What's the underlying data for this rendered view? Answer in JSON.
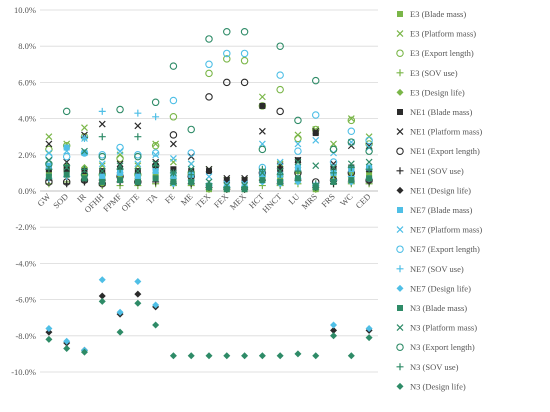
{
  "chart_data": {
    "type": "scatter",
    "title": "",
    "xlabel": "",
    "ylabel": "",
    "ylim": [
      -0.1,
      0.1
    ],
    "yticks": [
      -0.1,
      -0.08,
      -0.06,
      -0.04,
      -0.02,
      0.0,
      0.02,
      0.04,
      0.06,
      0.08,
      0.1
    ],
    "ytick_labels": [
      "-10.0%",
      "-8.0%",
      "-6.0%",
      "-4.0%",
      "-2.0%",
      "0.0%",
      "2.0%",
      "4.0%",
      "6.0%",
      "8.0%",
      "10.0%"
    ],
    "grid": "horizontal",
    "legend_position": "right",
    "categories": [
      "GW",
      "SOD",
      "IR",
      "OFHH",
      "FPMF",
      "OFTE",
      "TA",
      "FE",
      "ME",
      "TEX",
      "FEX",
      "MEX",
      "HCT",
      "HNCT",
      "LU",
      "MRS",
      "FRS",
      "WC",
      "CED"
    ],
    "series": [
      {
        "name": "E3 (Blade mass)",
        "color": "#7ab648",
        "marker": "square",
        "values": [
          0.01,
          0.012,
          0.01,
          0.006,
          0.007,
          0.006,
          0.008,
          0.006,
          0.006,
          0.001,
          0.001,
          0.001,
          0.007,
          0.007,
          0.011,
          0.001,
          0.007,
          0.008,
          0.009
        ]
      },
      {
        "name": "E3 (Platform mass)",
        "color": "#7ab648",
        "marker": "x",
        "values": [
          0.03,
          0.026,
          0.035,
          0.014,
          0.02,
          0.014,
          0.026,
          0.016,
          0.015,
          0.012,
          0.006,
          0.006,
          0.052,
          0.015,
          0.031,
          0.034,
          0.026,
          0.04,
          0.03
        ]
      },
      {
        "name": "E3 (Export length)",
        "color": "#7ab648",
        "marker": "circle",
        "values": [
          0.023,
          0.025,
          0.03,
          0.009,
          0.018,
          0.009,
          0.025,
          0.041,
          0.01,
          0.065,
          0.073,
          0.072,
          0.047,
          0.056,
          0.029,
          0.034,
          0.023,
          0.039,
          0.026
        ]
      },
      {
        "name": "E3 (SOV use)",
        "color": "#7ab648",
        "marker": "plus",
        "values": [
          0.004,
          0.005,
          0.005,
          0.003,
          0.003,
          0.003,
          0.004,
          0.003,
          0.003,
          0.001,
          0.001,
          0.001,
          0.003,
          0.003,
          0.004,
          0.001,
          0.004,
          0.004,
          0.004
        ]
      },
      {
        "name": "E3 (Design life)",
        "color": "#7ab648",
        "marker": "diamond",
        "values": [
          0.012,
          0.014,
          0.013,
          0.007,
          0.009,
          0.007,
          0.01,
          0.008,
          0.008,
          0.002,
          0.002,
          0.002,
          0.01,
          0.008,
          0.013,
          0.002,
          0.009,
          0.01,
          0.011
        ]
      },
      {
        "name": "NE1 (Blade mass)",
        "color": "#2b2b2b",
        "marker": "square",
        "values": [
          0.012,
          0.012,
          0.011,
          0.011,
          0.012,
          0.011,
          0.013,
          0.012,
          0.011,
          0.011,
          0.006,
          0.006,
          0.047,
          0.012,
          0.017,
          0.032,
          0.012,
          0.013,
          0.012
        ]
      },
      {
        "name": "NE1 (Platform mass)",
        "color": "#2b2b2b",
        "marker": "x",
        "values": [
          0.026,
          0.016,
          0.031,
          0.037,
          0.015,
          0.036,
          0.016,
          0.026,
          0.019,
          0.012,
          0.007,
          0.007,
          0.033,
          0.014,
          0.017,
          0.033,
          0.015,
          0.025,
          0.025
        ]
      },
      {
        "name": "NE1 (Export length)",
        "color": "#2b2b2b",
        "marker": "circle",
        "values": [
          0.005,
          0.005,
          0.006,
          0.004,
          0.008,
          0.005,
          0.014,
          0.031,
          0.008,
          0.052,
          0.06,
          0.06,
          0.01,
          0.044,
          0.01,
          0.005,
          0.006,
          0.01,
          0.006
        ]
      },
      {
        "name": "NE1 (SOV use)",
        "color": "#2b2b2b",
        "marker": "plus",
        "values": [
          0.006,
          0.004,
          0.005,
          0.006,
          0.005,
          0.005,
          0.005,
          0.004,
          0.004,
          0.002,
          0.001,
          0.001,
          0.006,
          0.004,
          0.006,
          0.002,
          0.004,
          0.005,
          0.005
        ]
      },
      {
        "name": "NE1 (Design life)",
        "color": "#2b2b2b",
        "marker": "diamond",
        "values": [
          -0.078,
          -0.084,
          -0.088,
          -0.058,
          -0.068,
          -0.057,
          -0.064,
          0.005,
          0.006,
          0.003,
          0.002,
          0.002,
          0.006,
          0.005,
          0.006,
          0.003,
          -0.077,
          0.006,
          -0.077
        ]
      },
      {
        "name": "NE7 (Blade mass)",
        "color": "#4fbfe6",
        "marker": "square",
        "values": [
          0.014,
          0.024,
          0.021,
          0.008,
          0.01,
          0.008,
          0.011,
          0.009,
          0.009,
          0.003,
          0.002,
          0.002,
          0.01,
          0.009,
          0.013,
          0.003,
          0.01,
          0.012,
          0.013
        ]
      },
      {
        "name": "NE7 (Platform mass)",
        "color": "#4fbfe6",
        "marker": "x",
        "values": [
          0.021,
          0.022,
          0.029,
          0.015,
          0.022,
          0.015,
          0.02,
          0.018,
          0.015,
          0.008,
          0.004,
          0.004,
          0.026,
          0.016,
          0.026,
          0.028,
          0.021,
          0.027,
          0.024
        ]
      },
      {
        "name": "NE7 (Export length)",
        "color": "#4fbfe6",
        "marker": "circle",
        "values": [
          0.019,
          0.019,
          0.021,
          0.02,
          0.024,
          0.02,
          0.021,
          0.05,
          0.021,
          0.07,
          0.076,
          0.076,
          0.013,
          0.064,
          0.022,
          0.042,
          0.016,
          0.033,
          0.028
        ]
      },
      {
        "name": "NE7 (SOV use)",
        "color": "#4fbfe6",
        "marker": "plus",
        "values": [
          0.007,
          0.008,
          0.029,
          0.044,
          0.01,
          0.043,
          0.041,
          0.007,
          0.006,
          0.003,
          0.002,
          0.002,
          0.008,
          0.006,
          0.007,
          0.003,
          0.006,
          0.008,
          0.007
        ]
      },
      {
        "name": "NE7 (Design life)",
        "color": "#4fbfe6",
        "marker": "diamond",
        "values": [
          -0.076,
          -0.083,
          -0.088,
          -0.049,
          -0.067,
          -0.05,
          -0.063,
          0.004,
          0.005,
          0.003,
          0.002,
          0.002,
          0.005,
          0.004,
          0.005,
          0.003,
          -0.074,
          0.005,
          -0.076
        ]
      },
      {
        "name": "N3 (Blade mass)",
        "color": "#2e8b67",
        "marker": "square",
        "values": [
          0.008,
          0.009,
          0.007,
          0.005,
          0.006,
          0.005,
          0.007,
          0.005,
          0.005,
          0.002,
          0.001,
          0.001,
          0.006,
          0.005,
          0.007,
          0.002,
          0.005,
          0.006,
          0.007
        ]
      },
      {
        "name": "N3 (Platform mass)",
        "color": "#2e8b67",
        "marker": "x",
        "values": [
          0.017,
          0.013,
          0.022,
          0.011,
          0.014,
          0.011,
          0.015,
          0.01,
          0.012,
          0.005,
          0.003,
          0.003,
          0.01,
          0.011,
          0.016,
          0.014,
          0.013,
          0.015,
          0.016
        ]
      },
      {
        "name": "N3 (Export length)",
        "color": "#2e8b67",
        "marker": "circle",
        "values": [
          0.015,
          0.044,
          0.009,
          0.019,
          0.045,
          0.019,
          0.049,
          0.069,
          0.034,
          0.084,
          0.088,
          0.088,
          0.023,
          0.08,
          0.039,
          0.061,
          0.023,
          0.027,
          0.022
        ]
      },
      {
        "name": "N3 (SOV use)",
        "color": "#2e8b67",
        "marker": "plus",
        "values": [
          0.012,
          0.014,
          0.012,
          0.03,
          0.012,
          0.03,
          0.014,
          0.01,
          0.009,
          0.004,
          0.002,
          0.002,
          0.012,
          0.009,
          0.011,
          0.004,
          0.01,
          0.013,
          0.012
        ]
      },
      {
        "name": "N3 (Design life)",
        "color": "#2e8b67",
        "marker": "diamond",
        "values": [
          -0.082,
          -0.087,
          -0.089,
          -0.061,
          -0.078,
          -0.062,
          -0.074,
          -0.091,
          -0.091,
          -0.091,
          -0.091,
          -0.091,
          -0.091,
          -0.091,
          -0.09,
          -0.091,
          -0.08,
          -0.091,
          -0.081
        ]
      }
    ]
  }
}
